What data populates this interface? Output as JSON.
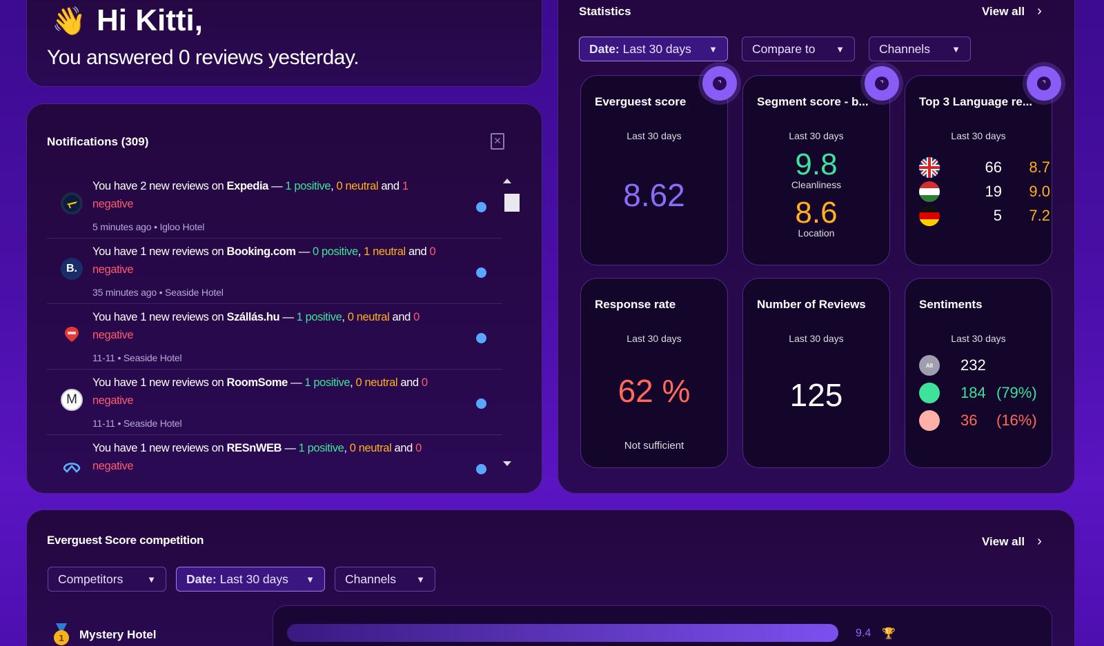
{
  "greeting": {
    "wave_emoji": "👋",
    "hello": "Hi Kitti,",
    "summary": "You answered 0 reviews yesterday."
  },
  "notifications": {
    "title": "Notifications (309)",
    "items": [
      {
        "icon": "expedia-icon",
        "prefix": "You have 2 new reviews on ",
        "source": "Expedia",
        "dash": " — ",
        "positive": "1 positive",
        "comma": ", ",
        "neutral": "0 neutral",
        "and": " and ",
        "negative_count": "1",
        "negative_word": "negative",
        "time": "5 minutes ago",
        "hotel": "Igloo Hotel"
      },
      {
        "icon": "booking-icon",
        "prefix": "You have 1 new reviews on ",
        "source": "Booking.com",
        "dash": " — ",
        "positive": "0 positive",
        "comma": ", ",
        "neutral": "1 neutral",
        "and": " and ",
        "negative_count": "0",
        "negative_word": "negative",
        "time": "35 minutes ago",
        "hotel": "Seaside Hotel"
      },
      {
        "icon": "szallas-icon",
        "prefix": "You have 1 new reviews on ",
        "source": "Szállás.hu",
        "dash": " — ",
        "positive": "1 positive",
        "comma": ", ",
        "neutral": "0 neutral",
        "and": " and ",
        "negative_count": "0",
        "negative_word": "negative",
        "time": "11-11",
        "hotel": "Seaside Hotel"
      },
      {
        "icon": "roomsome-icon",
        "prefix": "You have 1 new reviews on ",
        "source": "RoomSome",
        "dash": " — ",
        "positive": "1 positive",
        "comma": ", ",
        "neutral": "0 neutral",
        "and": " and ",
        "negative_count": "0",
        "negative_word": "negative",
        "time": "11-11",
        "hotel": "Seaside Hotel"
      },
      {
        "icon": "resnweb-icon",
        "prefix": "You have 1 new reviews on ",
        "source": "RESnWEB",
        "dash": " — ",
        "positive": "1 positive",
        "comma": ", ",
        "neutral": "0 neutral",
        "and": " and ",
        "negative_count": "0",
        "negative_word": "negative",
        "time": "",
        "hotel": ""
      }
    ],
    "booking_letter": "B.",
    "roomsome_letter": "M",
    "meta_sep": "•"
  },
  "statistics": {
    "title": "Statistics",
    "view_all": "View all",
    "filters": {
      "date_bold": "Date:",
      "date_value": "Last 30 days",
      "compare": "Compare to",
      "channels": "Channels"
    },
    "cards": {
      "everguest": {
        "title": "Everguest score",
        "period": "Last 30 days",
        "value": "8.62"
      },
      "segment": {
        "title": "Segment score - b...",
        "period": "Last 30 days",
        "first_value": "9.8",
        "first_label": "Cleanliness",
        "second_value": "8.6",
        "second_label": "Location"
      },
      "language": {
        "title": "Top 3 Language re...",
        "period": "Last 30 days",
        "rows": [
          {
            "flag": "uk-flag-icon",
            "count": "66",
            "score": "8.7"
          },
          {
            "flag": "hungary-flag-icon",
            "count": "19",
            "score": "9.0"
          },
          {
            "flag": "germany-flag-icon",
            "count": "5",
            "score": "7.2"
          }
        ]
      },
      "response": {
        "title": "Response rate",
        "period": "Last 30 days",
        "value": "62 %",
        "note": "Not sufficient"
      },
      "reviews": {
        "title": "Number of Reviews",
        "period": "Last 30 days",
        "value": "125"
      },
      "sentiments": {
        "title": "Sentiments",
        "period": "Last 30 days",
        "all_label": "All",
        "rows": [
          {
            "kind": "all",
            "value": "232",
            "pct": ""
          },
          {
            "kind": "positive",
            "value": "184",
            "pct": "(79%)"
          },
          {
            "kind": "negative",
            "value": "36",
            "pct": "(16%)"
          }
        ]
      }
    }
  },
  "competition": {
    "title": "Everguest Score competition",
    "view_all": "View all",
    "filters": {
      "competitors": "Competitors",
      "date_bold": "Date:",
      "date_value": "Last 30 days",
      "channels": "Channels"
    },
    "hotels": [
      {
        "name": "Mystery Hotel",
        "medal": "1",
        "score": "9.4",
        "fraction": 0.94
      }
    ]
  },
  "colors": {
    "positive": "#3fe29a",
    "neutral": "#ffb020",
    "negative": "#ff5a6e",
    "everguest_score": "#8d6df7",
    "response_rate": "#ff6a5a"
  }
}
